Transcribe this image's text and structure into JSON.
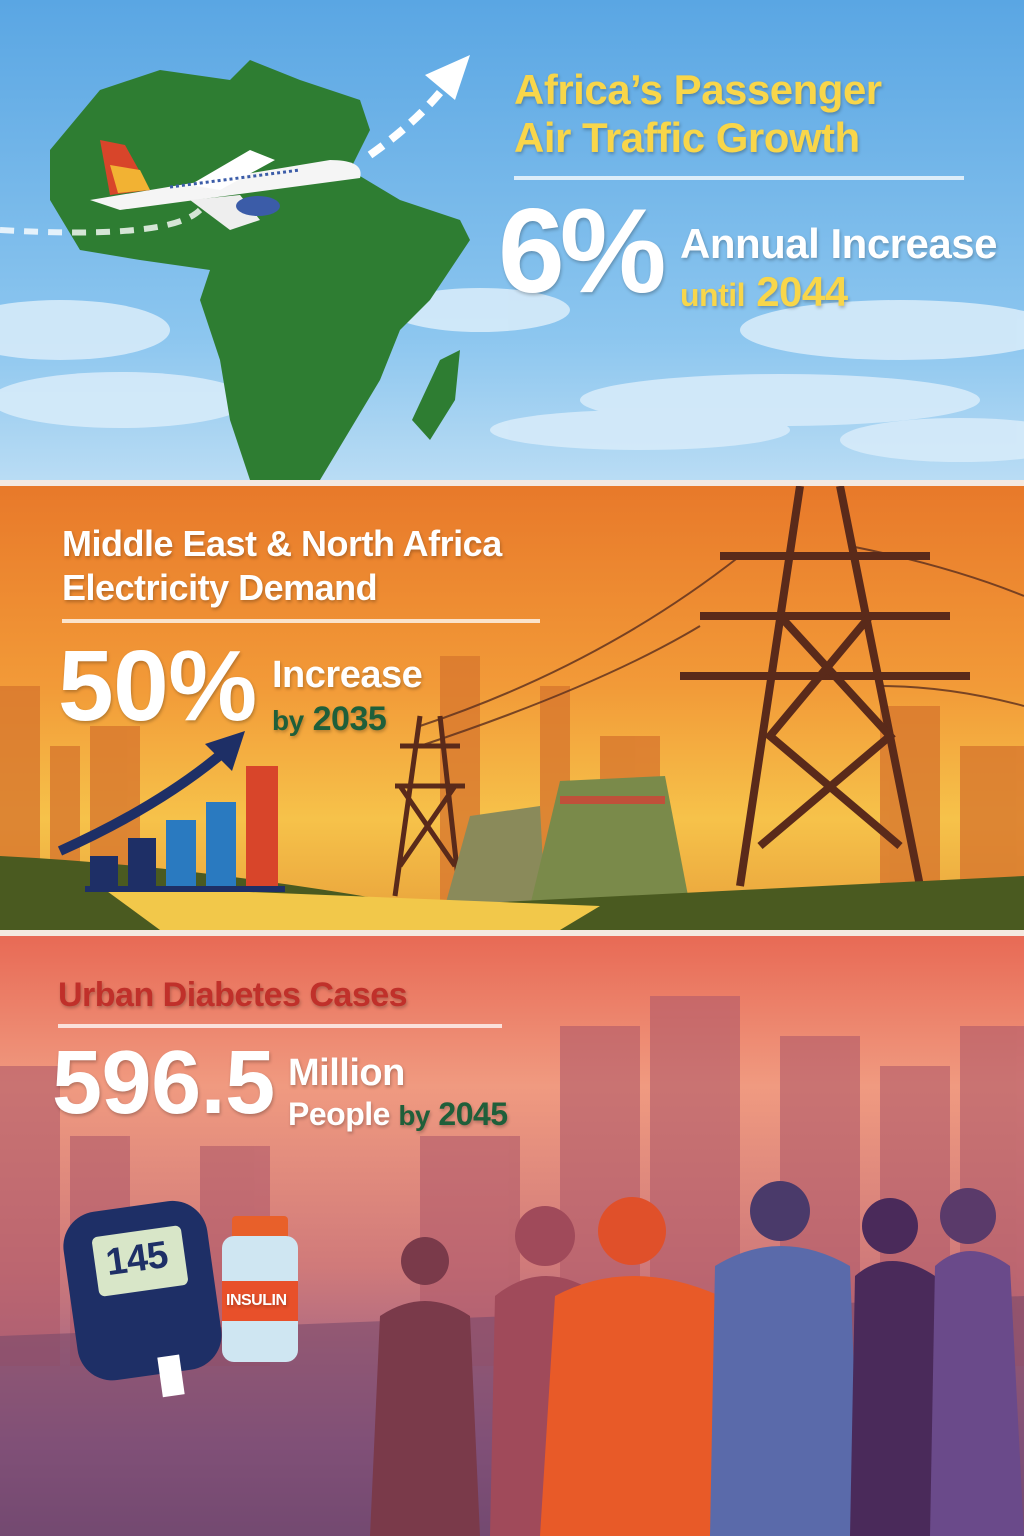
{
  "air": {
    "title_line1": "Africa’s Passenger",
    "title_line2": "Air Traffic Growth",
    "big": "6%",
    "line1": "Annual Increase",
    "line2_word": "until",
    "line2_year": "2044"
  },
  "electricity": {
    "title_line1": "Middle East & North Africa",
    "title_line2": "Electricity Demand",
    "big": "50%",
    "line1": "Increase",
    "line2_word": "by",
    "line2_year": "2035",
    "bar_levels": [
      0.25,
      0.4,
      0.55,
      0.7,
      1.0
    ]
  },
  "diabetes": {
    "title": "Urban Diabetes Cases",
    "big": "596.5",
    "line1": "Million",
    "line2_word": "People",
    "line2_by": "by",
    "line2_year": "2045",
    "meter_reading": "145",
    "vial_label": "INSULIN"
  },
  "colors": {
    "sky": "#5aa6e3",
    "africa_green": "#2e7d32",
    "yellow": "#f8d64a",
    "orange": "#f29a38",
    "diabetes_red": "#c0302a",
    "dark_green": "#1f5f3a",
    "navy": "#1e2f66"
  }
}
